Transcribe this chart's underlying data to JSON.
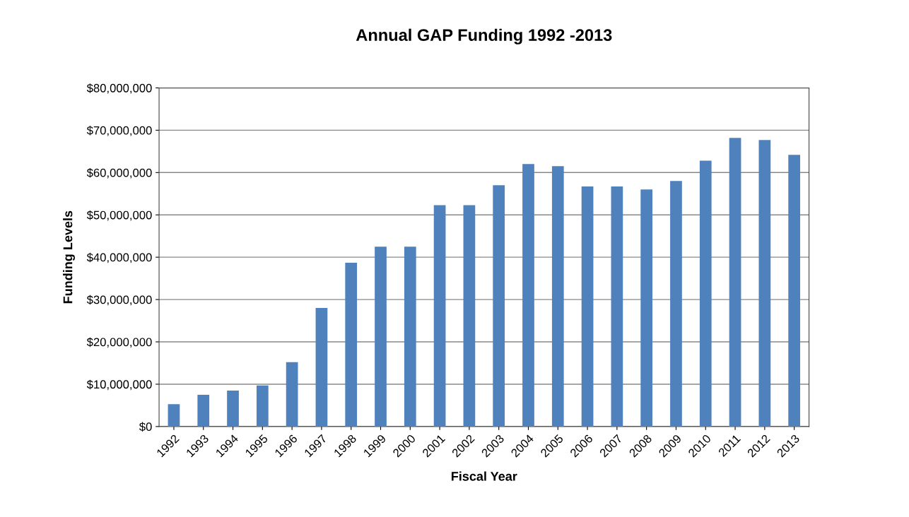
{
  "chart_data": {
    "type": "bar",
    "title": "Annual GAP Funding 1992 -2013",
    "xlabel": "Fiscal Year",
    "ylabel": "Funding Levels",
    "categories": [
      "1992",
      "1993",
      "1994",
      "1995",
      "1996",
      "1997",
      "1998",
      "1999",
      "2000",
      "2001",
      "2002",
      "2003",
      "2004",
      "2005",
      "2006",
      "2007",
      "2008",
      "2009",
      "2010",
      "2011",
      "2012",
      "2013"
    ],
    "values": [
      5300000,
      7500000,
      8500000,
      9700000,
      15200000,
      28000000,
      38700000,
      42500000,
      42500000,
      52300000,
      52300000,
      57000000,
      62000000,
      61500000,
      56700000,
      56700000,
      56000000,
      58000000,
      62800000,
      68200000,
      67700000,
      64200000
    ],
    "color": "#4f81bd",
    "ylim": [
      0,
      80000000
    ],
    "yticks": [
      {
        "value": 0,
        "label": "$0"
      },
      {
        "value": 10000000,
        "label": "$10,000,000"
      },
      {
        "value": 20000000,
        "label": "$20,000,000"
      },
      {
        "value": 30000000,
        "label": "$30,000,000"
      },
      {
        "value": 40000000,
        "label": "$40,000,000"
      },
      {
        "value": 50000000,
        "label": "$50,000,000"
      },
      {
        "value": 60000000,
        "label": "$60,000,000"
      },
      {
        "value": 70000000,
        "label": "$70,000,000"
      },
      {
        "value": 80000000,
        "label": "$80,000,000"
      }
    ],
    "grid": "y",
    "legend": false
  }
}
